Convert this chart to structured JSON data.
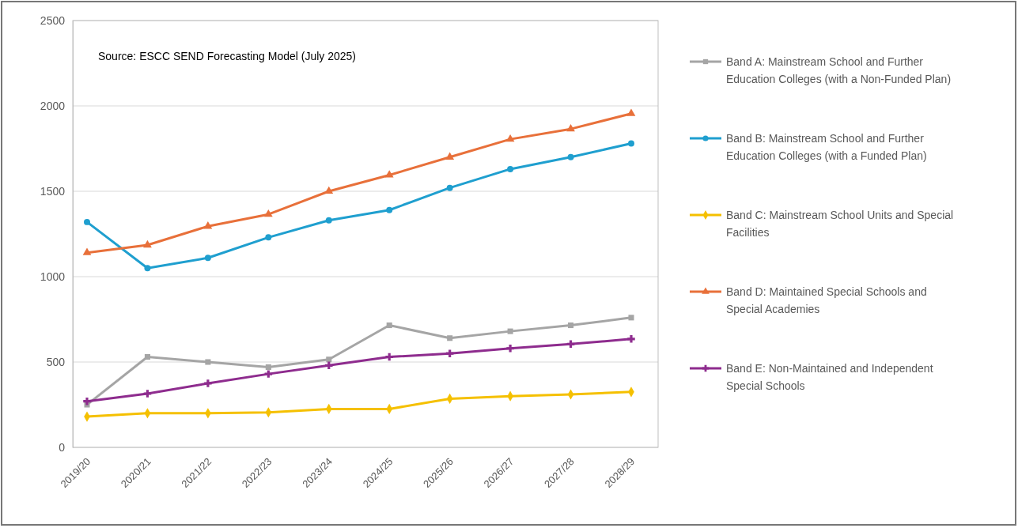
{
  "chart_data": {
    "type": "line",
    "categories": [
      "2019/20",
      "2020/21",
      "2021/22",
      "2022/23",
      "2023/24",
      "2024/25",
      "2025/26",
      "2026/27",
      "2027/28",
      "2028/29"
    ],
    "ylim": [
      0,
      2500
    ],
    "yticks": [
      0,
      500,
      1000,
      1500,
      2000,
      2500
    ],
    "grid": "y",
    "legend": "right",
    "line_style": "solid",
    "annotations": [
      "Source: ESCC SEND Forecasting Model (July 2025)"
    ],
    "series": [
      {
        "name": "Band A: Mainstream School and Further Education Colleges (with a Non-Funded Plan)",
        "color": "#a5a5a5",
        "marker": "square",
        "values": [
          250,
          530,
          500,
          470,
          515,
          715,
          640,
          680,
          715,
          760
        ]
      },
      {
        "name": "Band B: Mainstream School and Further Education Colleges (with a Funded Plan)",
        "color": "#1f9fcf",
        "marker": "circle",
        "values": [
          1320,
          1050,
          1110,
          1230,
          1330,
          1390,
          1520,
          1630,
          1700,
          1780
        ]
      },
      {
        "name": "Band C: Mainstream School Units and Special Facilities",
        "color": "#f5c000",
        "marker": "diamond",
        "values": [
          180,
          200,
          200,
          205,
          225,
          225,
          285,
          300,
          310,
          325
        ]
      },
      {
        "name": "Band D: Maintained Special Schools and Special Academies",
        "color": "#e8703a",
        "marker": "triangle",
        "values": [
          1140,
          1185,
          1295,
          1365,
          1500,
          1595,
          1700,
          1805,
          1865,
          1955
        ]
      },
      {
        "name": "Band E: Non-Maintained and Independent Special Schools",
        "color": "#8e2c8e",
        "marker": "cross",
        "values": [
          270,
          315,
          375,
          430,
          480,
          530,
          550,
          580,
          605,
          635
        ]
      }
    ]
  }
}
